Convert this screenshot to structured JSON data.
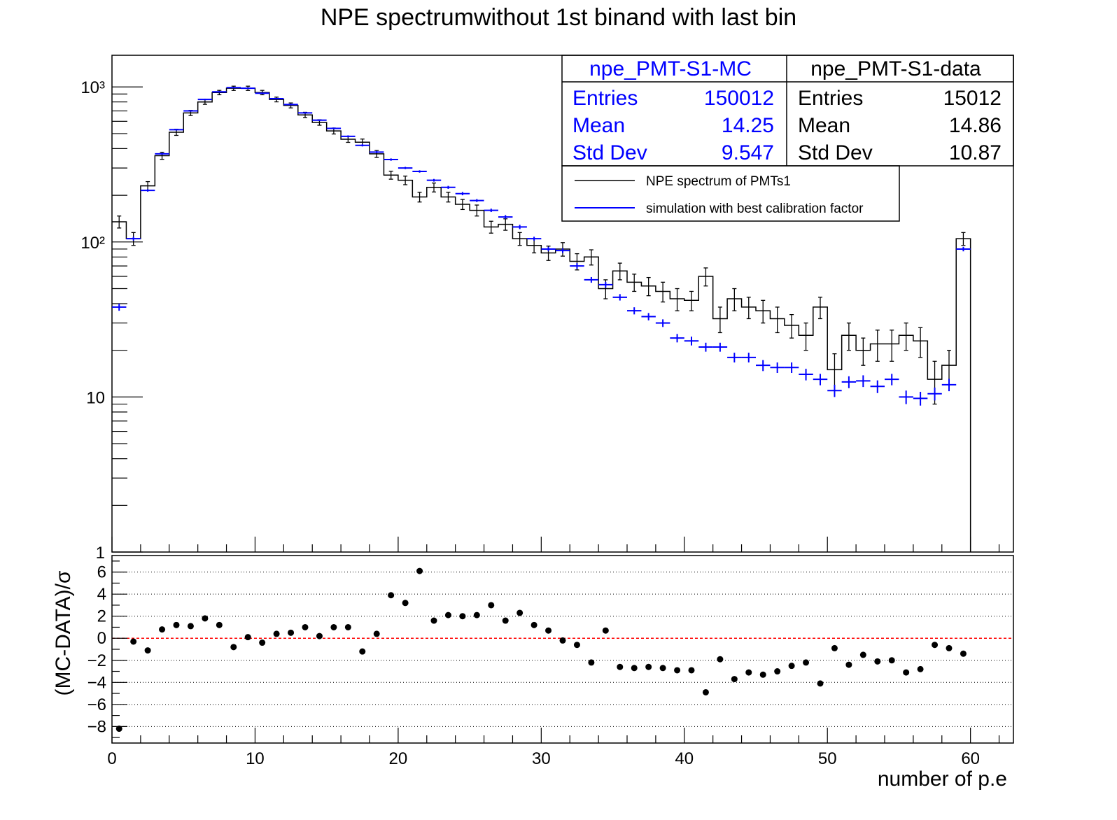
{
  "colors": {
    "data": "#000000",
    "mc": "#0000ff",
    "zero_line": "#ff0000",
    "grid": "#000000",
    "pull_marker": "#000000"
  },
  "chart_data": [
    {
      "type": "histogram",
      "title": "NPE spectrumwithout 1st binand with last bin",
      "xlim": [
        0,
        63
      ],
      "ylim": [
        1,
        1600
      ],
      "yscale": "log",
      "bin_width": 1,
      "y_ticks": [
        {
          "value": 1,
          "label": "1"
        },
        {
          "value": 10,
          "label": "10"
        },
        {
          "value": 100,
          "label": "10²"
        },
        {
          "value": 1000,
          "label": "10³"
        }
      ],
      "series": [
        {
          "name": "NPE spectrum of PMTs1",
          "style": "step",
          "color": "#000000",
          "bin_lo": [
            0,
            1,
            2,
            3,
            4,
            5,
            6,
            7,
            8,
            9,
            10,
            11,
            12,
            13,
            14,
            15,
            16,
            17,
            18,
            19,
            20,
            21,
            22,
            23,
            24,
            25,
            26,
            27,
            28,
            29,
            30,
            31,
            32,
            33,
            34,
            35,
            36,
            37,
            38,
            39,
            40,
            41,
            42,
            43,
            44,
            45,
            46,
            47,
            48,
            49,
            50,
            51,
            52,
            53,
            54,
            55,
            56,
            57,
            58,
            59
          ],
          "values": [
            135,
            105,
            230,
            360,
            510,
            680,
            800,
            920,
            980,
            980,
            920,
            830,
            760,
            660,
            590,
            520,
            460,
            440,
            370,
            270,
            250,
            195,
            225,
            195,
            175,
            160,
            125,
            130,
            105,
            95,
            85,
            90,
            75,
            80,
            50,
            65,
            55,
            52,
            48,
            43,
            42,
            60,
            32,
            43,
            38,
            36,
            32,
            29,
            25,
            38,
            15,
            25,
            20,
            22,
            22,
            25,
            23,
            13,
            16,
            105
          ],
          "errors": [
            12,
            10,
            15,
            19,
            23,
            26,
            28,
            30,
            31,
            31,
            30,
            29,
            28,
            26,
            24,
            23,
            21,
            21,
            19,
            16,
            16,
            14,
            15,
            14,
            13,
            13,
            11,
            11,
            10,
            10,
            9,
            9,
            9,
            9,
            7,
            8,
            7,
            7,
            7,
            7,
            6,
            8,
            6,
            7,
            6,
            6,
            6,
            5,
            5,
            6,
            4,
            5,
            4,
            5,
            5,
            5,
            5,
            4,
            4,
            10
          ]
        },
        {
          "name": "simulation with best calibration factor",
          "style": "errorbar",
          "color": "#0000ff",
          "x": [
            0.5,
            1.5,
            2.5,
            3.5,
            4.5,
            5.5,
            6.5,
            7.5,
            8.5,
            9.5,
            10.5,
            11.5,
            12.5,
            13.5,
            14.5,
            15.5,
            16.5,
            17.5,
            18.5,
            19.5,
            20.5,
            21.5,
            22.5,
            23.5,
            24.5,
            25.5,
            26.5,
            27.5,
            28.5,
            29.5,
            30.5,
            31.5,
            32.5,
            33.5,
            34.5,
            35.5,
            36.5,
            37.5,
            38.5,
            39.5,
            40.5,
            41.5,
            42.5,
            43.5,
            44.5,
            45.5,
            46.5,
            47.5,
            48.5,
            49.5,
            50.5,
            51.5,
            52.5,
            53.5,
            54.5,
            55.5,
            56.5,
            57.5,
            58.5,
            59.5
          ],
          "values": [
            38,
            105,
            215,
            370,
            530,
            700,
            830,
            930,
            990,
            980,
            910,
            840,
            770,
            680,
            610,
            540,
            480,
            420,
            380,
            340,
            300,
            285,
            250,
            225,
            205,
            185,
            160,
            145,
            125,
            105,
            90,
            88,
            70,
            57,
            53,
            44,
            36,
            33,
            30,
            24,
            23,
            21,
            21,
            18,
            18,
            16,
            15.5,
            15.5,
            14,
            13,
            11,
            12.5,
            12.7,
            11.7,
            13,
            10,
            9.8,
            10.5,
            12,
            90
          ],
          "errors": [
            2,
            3,
            4,
            5,
            7,
            8,
            9,
            10,
            10,
            10,
            10,
            9,
            9,
            8,
            8,
            7,
            7,
            7,
            6,
            6,
            5,
            5,
            5,
            5,
            5,
            4,
            4,
            4,
            4,
            3,
            3,
            3,
            3,
            2.4,
            2.3,
            2.1,
            1.9,
            1.8,
            1.7,
            1.5,
            1.5,
            1.4,
            1.4,
            1.3,
            1.3,
            1.3,
            1.2,
            1.2,
            1.2,
            1.1,
            1.0,
            1.1,
            1.1,
            1.1,
            1.1,
            1.0,
            1.0,
            1.0,
            1.1,
            3
          ]
        }
      ],
      "stats": [
        {
          "title": "npe_PMT-S1-MC",
          "color": "#0000ff",
          "entries_label": "Entries",
          "entries": "150012",
          "mean_label": "Mean",
          "mean": "14.25",
          "std_label": "Std Dev",
          "std": "9.547"
        },
        {
          "title": "npe_PMT-S1-data",
          "color": "#000000",
          "entries_label": "Entries",
          "entries": "15012",
          "mean_label": "Mean",
          "mean": "14.86",
          "std_label": "Std Dev",
          "std": "10.87"
        }
      ],
      "legend_position": "top-right"
    },
    {
      "type": "scatter",
      "ylabel": "(MC-DATA)/σ",
      "xlabel": "number of p.e",
      "xlim": [
        0,
        63
      ],
      "ylim": [
        -9.5,
        7.5
      ],
      "x_ticks": [
        0,
        10,
        20,
        30,
        40,
        50,
        60
      ],
      "y_ticks": [
        {
          "value": 6,
          "label": "6"
        },
        {
          "value": 4,
          "label": "4"
        },
        {
          "value": 2,
          "label": "2"
        },
        {
          "value": 0,
          "label": "0"
        },
        {
          "value": -2,
          "label": "−2"
        },
        {
          "value": -4,
          "label": "−4"
        },
        {
          "value": -6,
          "label": "−6"
        },
        {
          "value": -8,
          "label": "−8"
        }
      ],
      "grid": true,
      "reference_line": 0,
      "x": [
        0.5,
        1.5,
        2.5,
        3.5,
        4.5,
        5.5,
        6.5,
        7.5,
        8.5,
        9.5,
        10.5,
        11.5,
        12.5,
        13.5,
        14.5,
        15.5,
        16.5,
        17.5,
        18.5,
        19.5,
        20.5,
        21.5,
        22.5,
        23.5,
        24.5,
        25.5,
        26.5,
        27.5,
        28.5,
        29.5,
        30.5,
        31.5,
        32.5,
        33.5,
        34.5,
        35.5,
        36.5,
        37.5,
        38.5,
        39.5,
        40.5,
        41.5,
        42.5,
        43.5,
        44.5,
        45.5,
        46.5,
        47.5,
        48.5,
        49.5,
        50.5,
        51.5,
        52.5,
        53.5,
        54.5,
        55.5,
        56.5,
        57.5,
        58.5,
        59.5
      ],
      "values": [
        -8.2,
        -0.3,
        -1.1,
        0.8,
        1.2,
        1.1,
        1.8,
        1.2,
        -0.8,
        0.1,
        -0.4,
        0.4,
        0.5,
        1.0,
        0.2,
        1.0,
        1.0,
        -1.2,
        0.4,
        3.9,
        3.2,
        6.1,
        1.6,
        2.1,
        2.0,
        2.1,
        3.0,
        1.6,
        2.3,
        1.2,
        0.7,
        -0.2,
        -0.6,
        -2.2,
        0.7,
        -2.6,
        -2.7,
        -2.6,
        -2.7,
        -2.9,
        -2.9,
        -4.9,
        -1.9,
        -3.7,
        -3.1,
        -3.3,
        -3.0,
        -2.5,
        -2.2,
        -4.1,
        -0.9,
        -2.4,
        -1.5,
        -2.1,
        -2.0,
        -3.1,
        -2.8,
        -0.6,
        -0.9,
        -1.4
      ]
    }
  ]
}
